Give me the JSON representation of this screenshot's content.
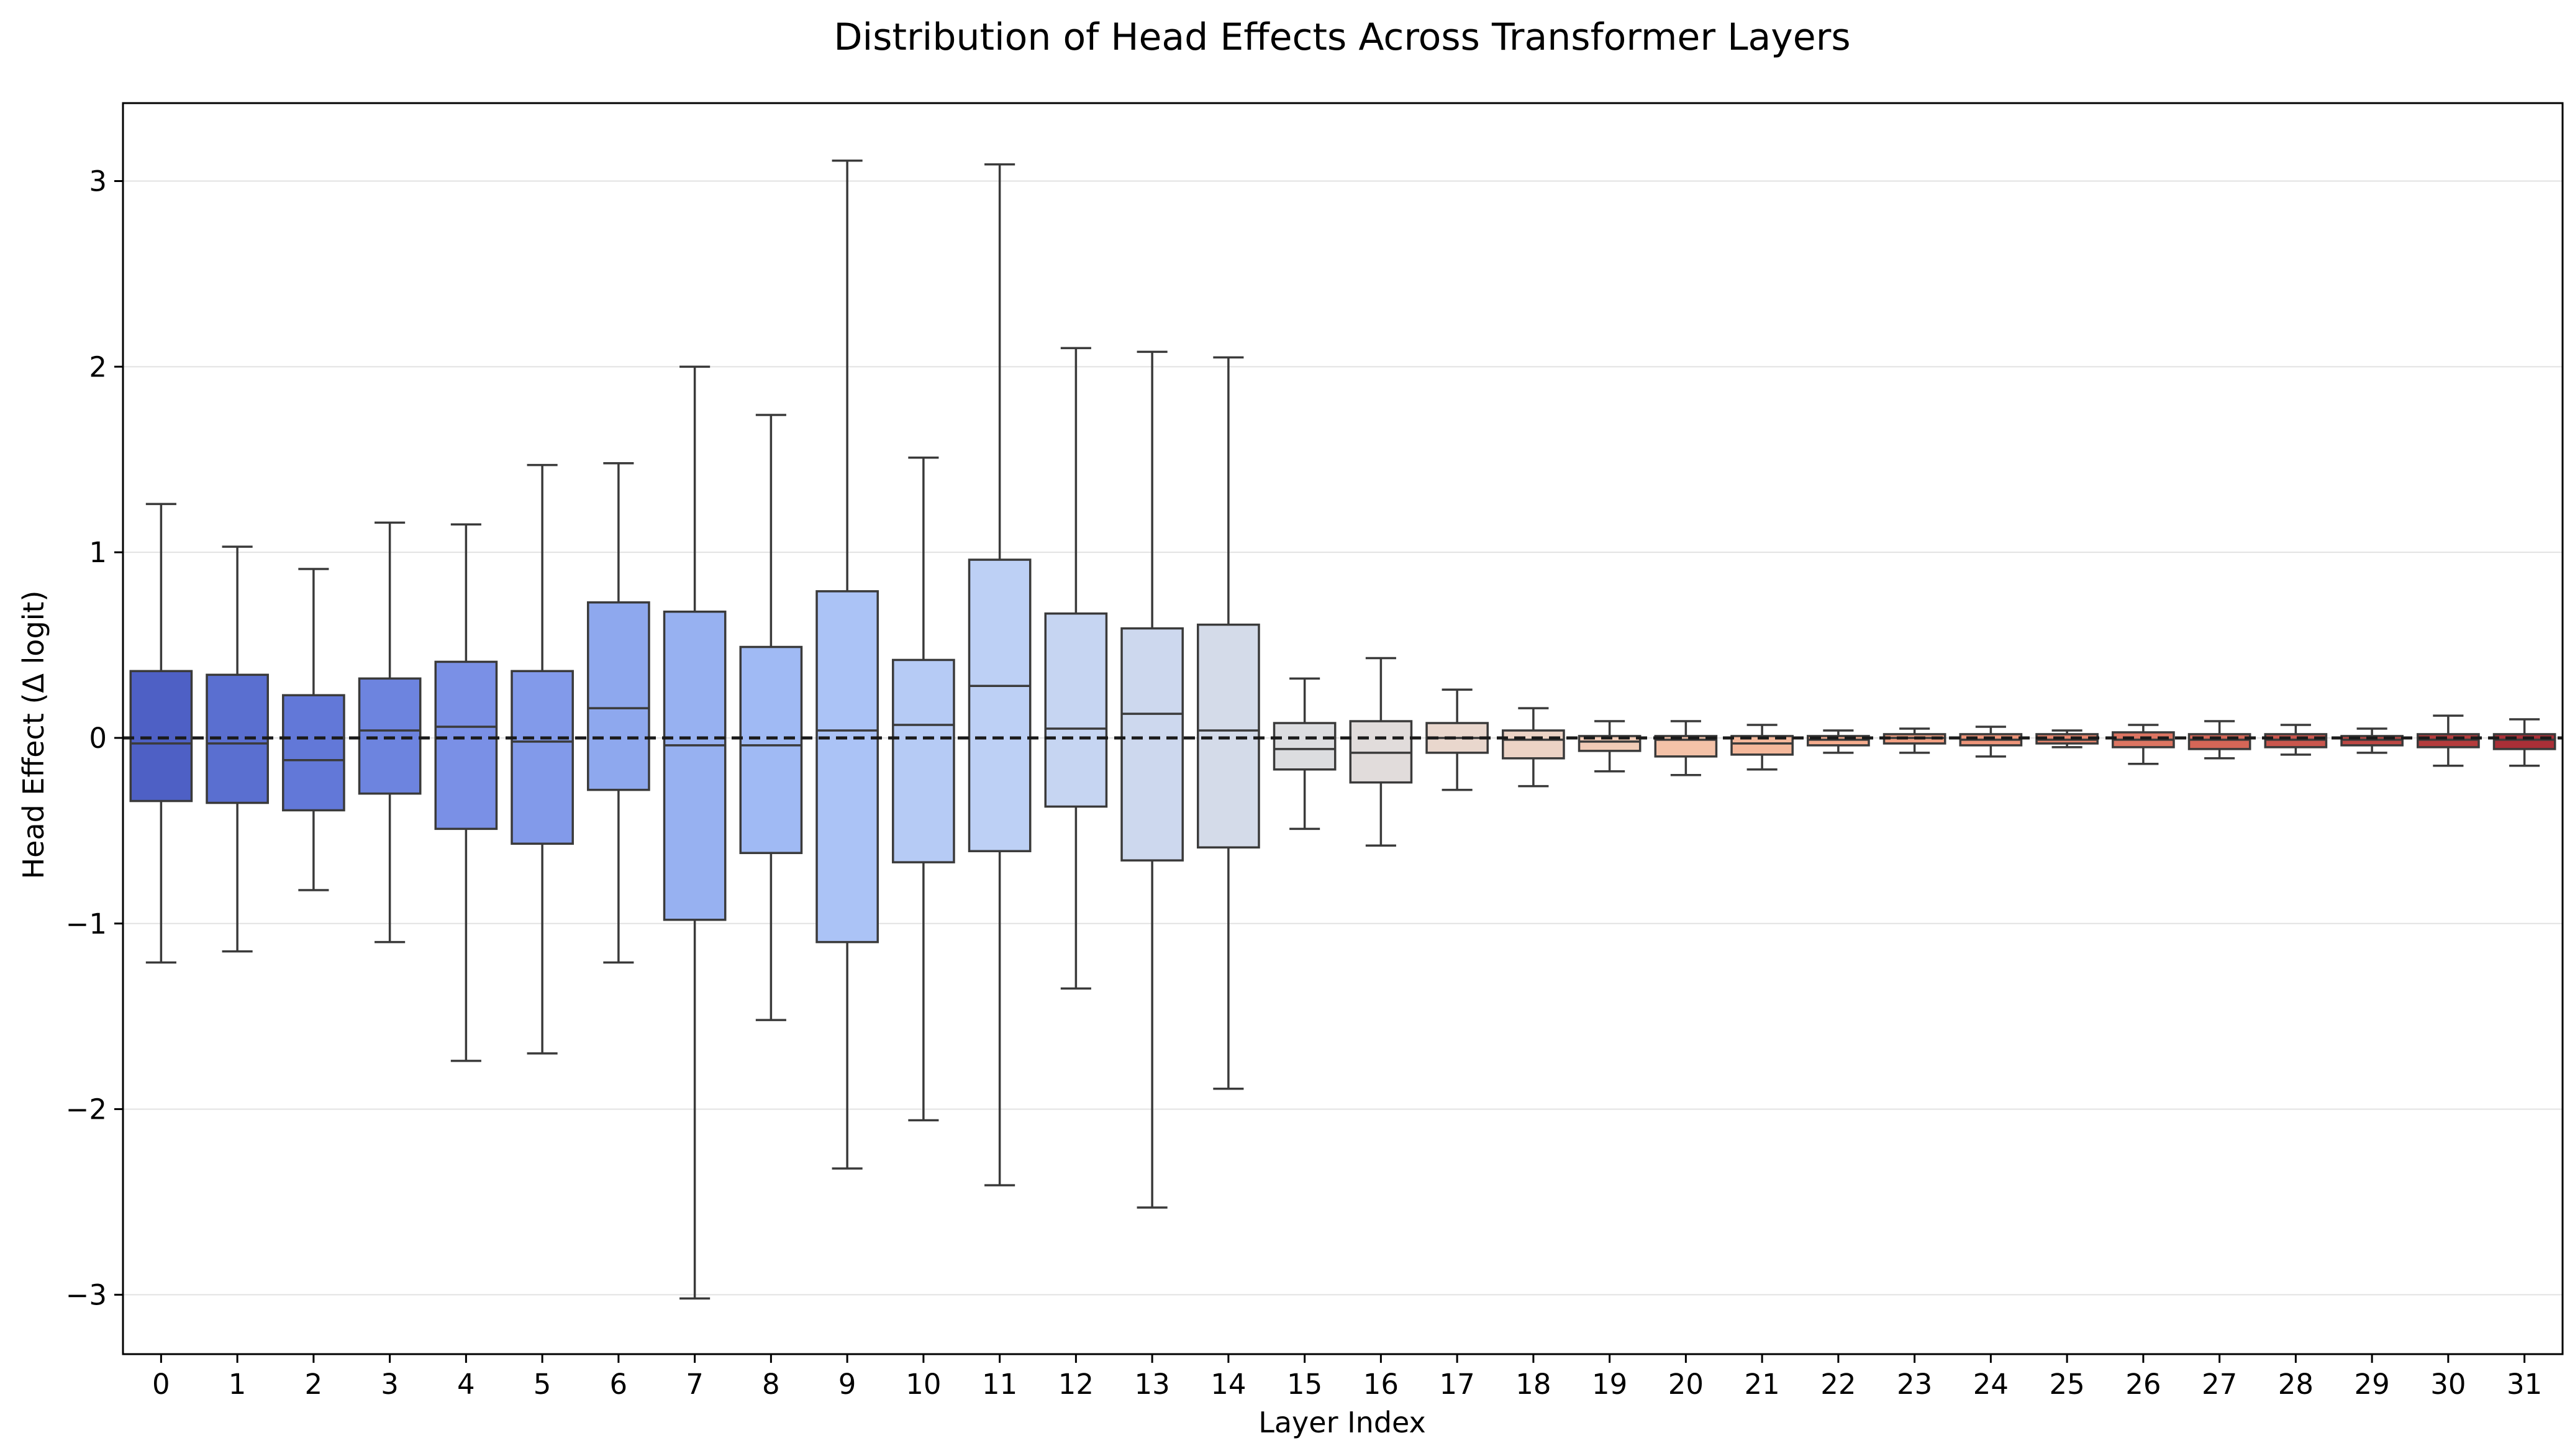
{
  "chart_data": {
    "type": "box",
    "title": "Distribution of Head Effects Across Transformer Layers",
    "xlabel": "Layer Index",
    "ylabel": "Head Effect (Δ logit)",
    "ylim": [
      -3.32,
      3.42
    ],
    "yticks": [
      -3,
      -2,
      -1,
      0,
      1,
      2,
      3
    ],
    "ytick_labels": [
      "−3",
      "−2",
      "−1",
      "0",
      "1",
      "2",
      "3"
    ],
    "grid": "horizontal",
    "reference_line": {
      "y": 0,
      "style": "dashed",
      "color": "#1a1a1a"
    },
    "boxes": [
      {
        "layer": "0",
        "whisker_low": -1.21,
        "q1": -0.34,
        "median": -0.03,
        "q3": 0.36,
        "whisker_high": 1.26,
        "color": "#4e60c5"
      },
      {
        "layer": "1",
        "whisker_low": -1.15,
        "q1": -0.35,
        "median": -0.03,
        "q3": 0.34,
        "whisker_high": 1.03,
        "color": "#5a6fd0"
      },
      {
        "layer": "2",
        "whisker_low": -0.82,
        "q1": -0.39,
        "median": -0.12,
        "q3": 0.23,
        "whisker_high": 0.91,
        "color": "#6278d8"
      },
      {
        "layer": "3",
        "whisker_low": -1.1,
        "q1": -0.3,
        "median": 0.04,
        "q3": 0.32,
        "whisker_high": 1.16,
        "color": "#6d84df"
      },
      {
        "layer": "4",
        "whisker_low": -1.74,
        "q1": -0.49,
        "median": 0.06,
        "q3": 0.41,
        "whisker_high": 1.15,
        "color": "#7a90e6"
      },
      {
        "layer": "5",
        "whisker_low": -1.7,
        "q1": -0.57,
        "median": -0.02,
        "q3": 0.36,
        "whisker_high": 1.47,
        "color": "#829aea"
      },
      {
        "layer": "6",
        "whisker_low": -1.21,
        "q1": -0.28,
        "median": 0.16,
        "q3": 0.73,
        "whisker_high": 1.48,
        "color": "#8ea8ee"
      },
      {
        "layer": "7",
        "whisker_low": -3.02,
        "q1": -0.98,
        "median": -0.04,
        "q3": 0.68,
        "whisker_high": 2.0,
        "color": "#97b1f1"
      },
      {
        "layer": "8",
        "whisker_low": -1.52,
        "q1": -0.62,
        "median": -0.04,
        "q3": 0.49,
        "whisker_high": 1.74,
        "color": "#a0baf4"
      },
      {
        "layer": "9",
        "whisker_low": -2.32,
        "q1": -1.1,
        "median": 0.04,
        "q3": 0.79,
        "whisker_high": 3.11,
        "color": "#abc3f6"
      },
      {
        "layer": "10",
        "whisker_low": -2.06,
        "q1": -0.67,
        "median": 0.07,
        "q3": 0.42,
        "whisker_high": 1.51,
        "color": "#b6cbf5"
      },
      {
        "layer": "11",
        "whisker_low": -2.41,
        "q1": -0.61,
        "median": 0.28,
        "q3": 0.96,
        "whisker_high": 3.09,
        "color": "#bdd0f5"
      },
      {
        "layer": "12",
        "whisker_low": -1.35,
        "q1": -0.37,
        "median": 0.05,
        "q3": 0.67,
        "whisker_high": 2.1,
        "color": "#c6d5f2"
      },
      {
        "layer": "13",
        "whisker_low": -2.53,
        "q1": -0.66,
        "median": 0.13,
        "q3": 0.59,
        "whisker_high": 2.08,
        "color": "#cdd8ee"
      },
      {
        "layer": "14",
        "whisker_low": -1.89,
        "q1": -0.59,
        "median": 0.04,
        "q3": 0.61,
        "whisker_high": 2.05,
        "color": "#d4dbe9"
      },
      {
        "layer": "15",
        "whisker_low": -0.49,
        "q1": -0.17,
        "median": -0.06,
        "q3": 0.08,
        "whisker_high": 0.32,
        "color": "#dcdde0"
      },
      {
        "layer": "16",
        "whisker_low": -0.58,
        "q1": -0.24,
        "median": -0.08,
        "q3": 0.09,
        "whisker_high": 0.43,
        "color": "#e1dcdb"
      },
      {
        "layer": "17",
        "whisker_low": -0.28,
        "q1": -0.08,
        "median": 0.0,
        "q3": 0.08,
        "whisker_high": 0.26,
        "color": "#e9d7cd"
      },
      {
        "layer": "18",
        "whisker_low": -0.26,
        "q1": -0.11,
        "median": -0.01,
        "q3": 0.04,
        "whisker_high": 0.16,
        "color": "#ecd3c5"
      },
      {
        "layer": "19",
        "whisker_low": -0.18,
        "q1": -0.07,
        "median": -0.02,
        "q3": 0.01,
        "whisker_high": 0.09,
        "color": "#f1cbb6"
      },
      {
        "layer": "20",
        "whisker_low": -0.2,
        "q1": -0.1,
        "median": -0.01,
        "q3": 0.01,
        "whisker_high": 0.09,
        "color": "#f4c2a8"
      },
      {
        "layer": "21",
        "whisker_low": -0.17,
        "q1": -0.09,
        "median": -0.03,
        "q3": 0.01,
        "whisker_high": 0.07,
        "color": "#f5b89b"
      },
      {
        "layer": "22",
        "whisker_low": -0.08,
        "q1": -0.04,
        "median": -0.01,
        "q3": 0.01,
        "whisker_high": 0.04,
        "color": "#f5ac8d"
      },
      {
        "layer": "23",
        "whisker_low": -0.08,
        "q1": -0.03,
        "median": 0.0,
        "q3": 0.02,
        "whisker_high": 0.05,
        "color": "#f1a083"
      },
      {
        "layer": "24",
        "whisker_low": -0.1,
        "q1": -0.04,
        "median": -0.01,
        "q3": 0.02,
        "whisker_high": 0.06,
        "color": "#ed9479"
      },
      {
        "layer": "25",
        "whisker_low": -0.05,
        "q1": -0.03,
        "median": -0.01,
        "q3": 0.02,
        "whisker_high": 0.04,
        "color": "#e6856d"
      },
      {
        "layer": "26",
        "whisker_low": -0.14,
        "q1": -0.05,
        "median": -0.01,
        "q3": 0.03,
        "whisker_high": 0.07,
        "color": "#dd7562"
      },
      {
        "layer": "27",
        "whisker_low": -0.11,
        "q1": -0.06,
        "median": -0.01,
        "q3": 0.02,
        "whisker_high": 0.09,
        "color": "#d46657"
      },
      {
        "layer": "28",
        "whisker_low": -0.09,
        "q1": -0.05,
        "median": -0.01,
        "q3": 0.02,
        "whisker_high": 0.07,
        "color": "#ca564d"
      },
      {
        "layer": "29",
        "whisker_low": -0.08,
        "q1": -0.04,
        "median": -0.01,
        "q3": 0.01,
        "whisker_high": 0.05,
        "color": "#bd4743"
      },
      {
        "layer": "30",
        "whisker_low": -0.15,
        "q1": -0.05,
        "median": -0.01,
        "q3": 0.02,
        "whisker_high": 0.12,
        "color": "#b43b3c"
      },
      {
        "layer": "31",
        "whisker_low": -0.15,
        "q1": -0.06,
        "median": -0.01,
        "q3": 0.02,
        "whisker_high": 0.1,
        "color": "#aa2f37"
      }
    ]
  }
}
